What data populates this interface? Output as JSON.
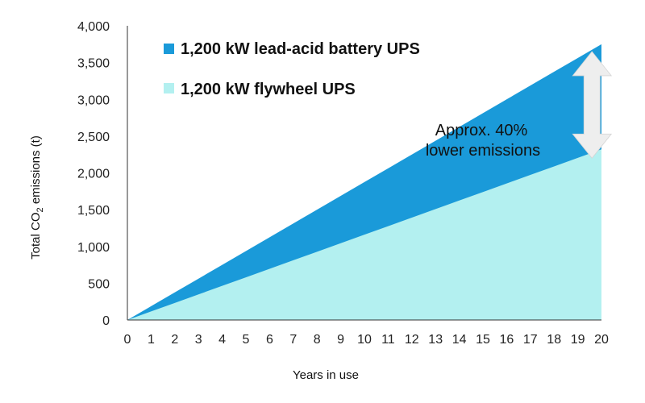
{
  "chart_data": {
    "type": "area",
    "x": [
      0,
      1,
      2,
      3,
      4,
      5,
      6,
      7,
      8,
      9,
      10,
      11,
      12,
      13,
      14,
      15,
      16,
      17,
      18,
      19,
      20
    ],
    "xlabel": "Years in use",
    "ylabel": {
      "prefix": "Total CO",
      "subscript": "2",
      "suffix": " emissions (t)"
    },
    "xlim": [
      0,
      20
    ],
    "ylim": [
      0,
      4000
    ],
    "x_ticks": [
      "0",
      "1",
      "2",
      "3",
      "4",
      "5",
      "6",
      "7",
      "8",
      "9",
      "10",
      "11",
      "12",
      "13",
      "14",
      "15",
      "16",
      "17",
      "18",
      "19",
      "20"
    ],
    "y_ticks": [
      {
        "value": 0,
        "label": "0"
      },
      {
        "value": 500,
        "label": "500"
      },
      {
        "value": 1000,
        "label": "1,000"
      },
      {
        "value": 1500,
        "label": "1,500"
      },
      {
        "value": 2000,
        "label": "2,000"
      },
      {
        "value": 2500,
        "label": "2,500"
      },
      {
        "value": 3000,
        "label": "3,000"
      },
      {
        "value": 3500,
        "label": "3,500"
      },
      {
        "value": 4000,
        "label": "4,000"
      }
    ],
    "series": [
      {
        "name": "1,200 kW lead-acid battery UPS",
        "color": "#1a9ad9",
        "values": [
          0,
          187,
          375,
          562,
          750,
          937,
          1125,
          1312,
          1500,
          1687,
          1875,
          2062,
          2250,
          2437,
          2625,
          2812,
          3000,
          3187,
          3375,
          3562,
          3750
        ]
      },
      {
        "name": "1,200 kW flywheel UPS",
        "color": "#b3f0f0",
        "values": [
          0,
          116,
          232,
          348,
          464,
          580,
          696,
          812,
          928,
          1044,
          1160,
          1276,
          1392,
          1508,
          1624,
          1740,
          1856,
          1972,
          2088,
          2204,
          2320
        ]
      }
    ],
    "legend_position": "top-left",
    "grid": false,
    "annotation": {
      "lines": [
        "Approx. 40%",
        "lower emissions"
      ],
      "x": 19.6,
      "y_from": 3650,
      "y_to": 2200,
      "arrow_color": "#eeeeee"
    }
  }
}
